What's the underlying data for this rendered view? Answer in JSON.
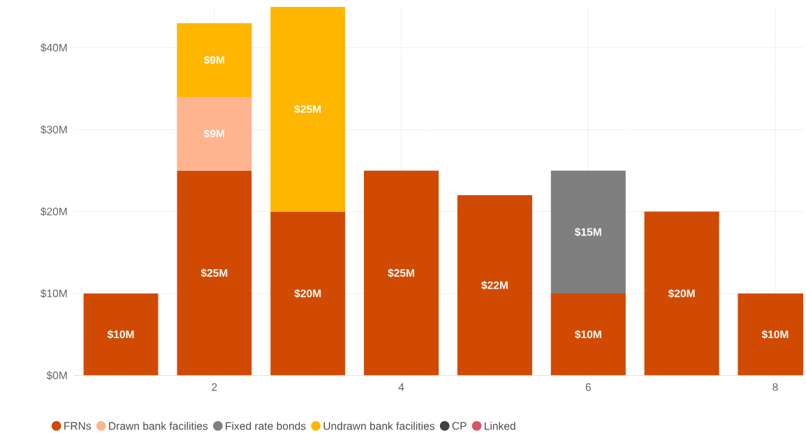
{
  "chart_data": {
    "type": "bar",
    "stacked": true,
    "x": [
      1,
      2,
      3,
      4,
      5,
      6,
      7,
      8
    ],
    "series": [
      {
        "name": "FRNs",
        "color": "#d04a02",
        "values": [
          10,
          25,
          20,
          25,
          22,
          10,
          20,
          10
        ],
        "value_labels": [
          "$10M",
          "$25M",
          "$20M",
          "$25M",
          "$22M",
          "$10M",
          "$20M",
          "$10M"
        ]
      },
      {
        "name": "Drawn bank facilities",
        "color": "#fdb48f",
        "values": [
          null,
          9,
          null,
          null,
          null,
          null,
          null,
          null
        ],
        "value_labels": [
          null,
          "$9M",
          null,
          null,
          null,
          null,
          null,
          null
        ]
      },
      {
        "name": "Fixed rate bonds",
        "color": "#7f7f7f",
        "values": [
          null,
          null,
          null,
          null,
          null,
          15,
          null,
          null
        ],
        "value_labels": [
          null,
          null,
          null,
          null,
          null,
          "$15M",
          null,
          null
        ]
      },
      {
        "name": "Undrawn bank facilities",
        "color": "#ffb600",
        "values": [
          null,
          9,
          25,
          null,
          null,
          null,
          null,
          null
        ],
        "value_labels": [
          null,
          "$9M",
          "$25M",
          null,
          null,
          null,
          null,
          null
        ]
      },
      {
        "name": "CP",
        "color": "#404040",
        "values": [
          null,
          null,
          null,
          null,
          null,
          null,
          null,
          null
        ]
      },
      {
        "name": "Linked",
        "color": "#db536a",
        "values": [
          null,
          null,
          null,
          null,
          null,
          null,
          null,
          null
        ]
      }
    ],
    "xlim": [
      0.5,
      8.3
    ],
    "xticks": [
      2,
      4,
      6,
      8
    ],
    "ylim": [
      0,
      45
    ],
    "yticks": [
      {
        "value": 0,
        "label": "$0M"
      },
      {
        "value": 10,
        "label": "$10M"
      },
      {
        "value": 20,
        "label": "$20M"
      },
      {
        "value": 30,
        "label": "$30M"
      },
      {
        "value": 40,
        "label": "$40M"
      }
    ],
    "grid": true,
    "legend": "bottom"
  }
}
